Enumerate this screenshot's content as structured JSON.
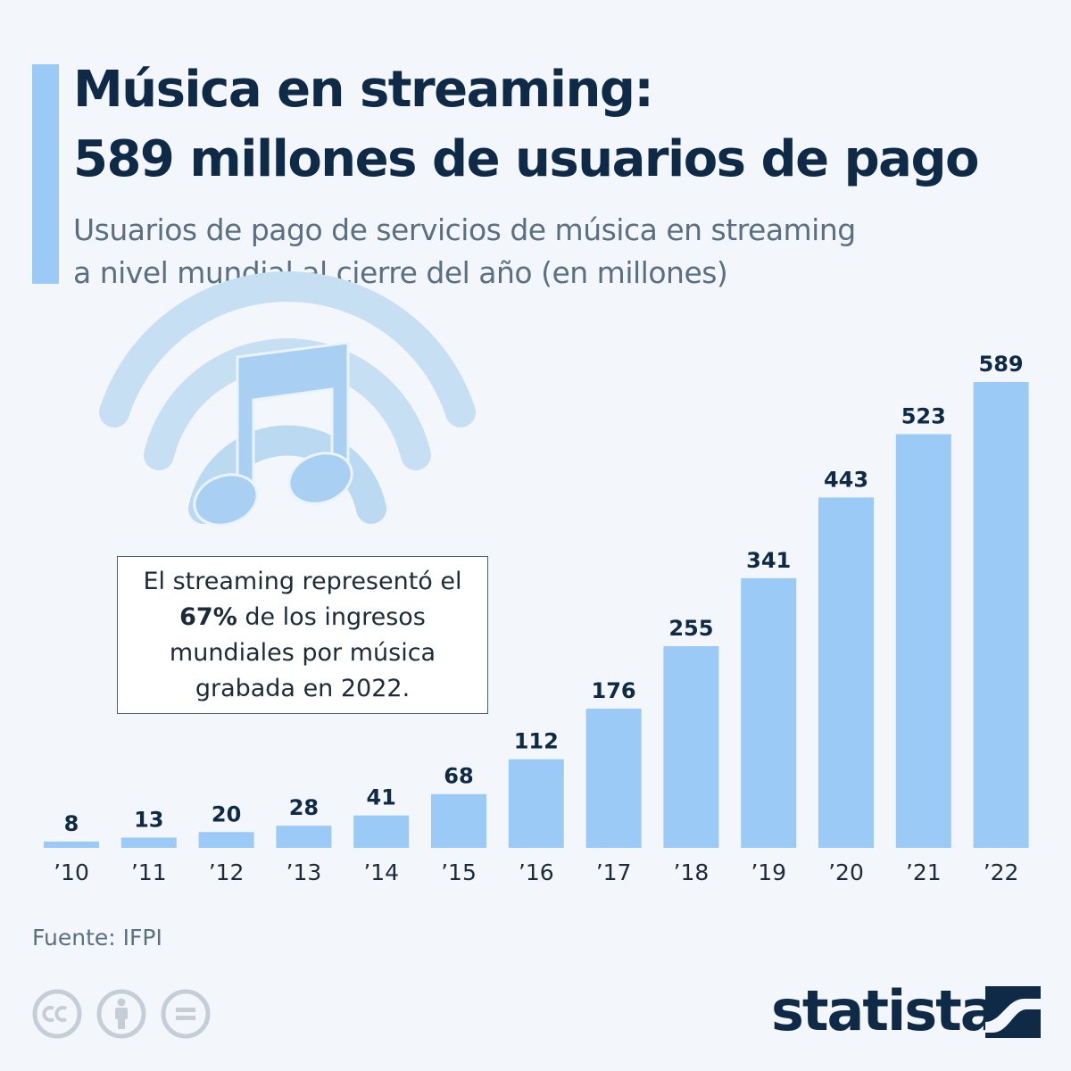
{
  "header": {
    "title_line1": "Música en streaming:",
    "title_line2": "589 millones de usuarios de pago",
    "subtitle_line1": "Usuarios de pago de servicios de música en streaming",
    "subtitle_line2": "a nivel mundial al cierre del año (en millones)"
  },
  "note": {
    "line1": "El streaming representó el",
    "highlight": "67%",
    "line2_rest": " de los ingresos",
    "line3": "mundiales por música",
    "line4": "grabada en 2022."
  },
  "footer": {
    "source": "Fuente: IFPI",
    "brand": "statista",
    "license_icons": [
      "creative-commons-icon",
      "attribution-icon",
      "no-derivatives-icon"
    ]
  },
  "colors": {
    "bar": "#9bcaf7",
    "text_dark": "#0f2a47",
    "text_muted": "#5b6f83",
    "background": "#f3f7fb"
  },
  "chart_data": {
    "type": "bar",
    "categories": [
      "’10",
      "’11",
      "’12",
      "’13",
      "’14",
      "’15",
      "’16",
      "’17",
      "’18",
      "’19",
      "’20",
      "’21",
      "’22"
    ],
    "values": [
      8,
      13,
      20,
      28,
      41,
      68,
      112,
      176,
      255,
      341,
      443,
      523,
      589
    ],
    "data_labels": [
      "8",
      "13",
      "20",
      "28",
      "41",
      "68",
      "112",
      "176",
      "255",
      "341",
      "443",
      "523",
      "589"
    ],
    "title": "Música en streaming: 589 millones de usuarios de pago",
    "subtitle": "Usuarios de pago de servicios de música en streaming a nivel mundial al cierre del año (en millones)",
    "xlabel": "",
    "ylabel": "",
    "ylim": [
      0,
      589
    ],
    "grid": false,
    "legend": "none",
    "decoration": "music-streaming-icon"
  }
}
